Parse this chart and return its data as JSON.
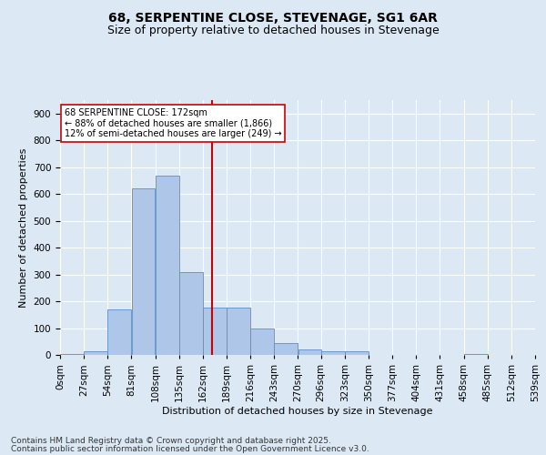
{
  "title": "68, SERPENTINE CLOSE, STEVENAGE, SG1 6AR",
  "subtitle": "Size of property relative to detached houses in Stevenage",
  "xlabel": "Distribution of detached houses by size in Stevenage",
  "ylabel": "Number of detached properties",
  "footnote1": "Contains HM Land Registry data © Crown copyright and database right 2025.",
  "footnote2": "Contains public sector information licensed under the Open Government Licence v3.0.",
  "bin_edges": [
    0,
    27,
    54,
    81,
    108,
    135,
    162,
    189,
    216,
    243,
    270,
    296,
    323,
    350,
    377,
    404,
    431,
    458,
    485,
    512,
    539
  ],
  "bin_labels": [
    "0sqm",
    "27sqm",
    "54sqm",
    "81sqm",
    "108sqm",
    "135sqm",
    "162sqm",
    "189sqm",
    "216sqm",
    "243sqm",
    "270sqm",
    "296sqm",
    "323sqm",
    "350sqm",
    "377sqm",
    "404sqm",
    "431sqm",
    "458sqm",
    "485sqm",
    "512sqm",
    "539sqm"
  ],
  "bar_values": [
    5,
    15,
    170,
    620,
    670,
    310,
    175,
    175,
    100,
    45,
    20,
    15,
    15,
    0,
    0,
    0,
    0,
    5,
    0,
    0
  ],
  "bar_color": "#aec6e8",
  "bar_edge_color": "#5b8fc9",
  "property_size": 172,
  "vline_color": "#cc0000",
  "annotation_text": "68 SERPENTINE CLOSE: 172sqm\n← 88% of detached houses are smaller (1,866)\n12% of semi-detached houses are larger (249) →",
  "annotation_box_color": "#ffffff",
  "annotation_box_edge": "#cc0000",
  "ylim": [
    0,
    950
  ],
  "yticks": [
    0,
    100,
    200,
    300,
    400,
    500,
    600,
    700,
    800,
    900
  ],
  "xlim": [
    0,
    539
  ],
  "background_color": "#dce9f5",
  "plot_bg_color": "#dce9f5",
  "title_fontsize": 10,
  "subtitle_fontsize": 9,
  "label_fontsize": 8,
  "tick_fontsize": 7.5,
  "footnote_fontsize": 6.5
}
